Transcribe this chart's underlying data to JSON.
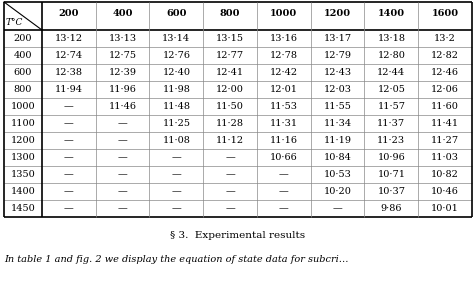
{
  "pressure_header": [
    "200",
    "400",
    "600",
    "800",
    "1000",
    "1200",
    "1400",
    "1600"
  ],
  "temp_col": [
    "200",
    "400",
    "600",
    "800",
    "1000",
    "1100",
    "1200",
    "1300",
    "1350",
    "1400",
    "1450"
  ],
  "table_data": [
    [
      "13·12",
      "13·13",
      "13·14",
      "13·15",
      "13·16",
      "13·17",
      "13·18",
      "13·2"
    ],
    [
      "12·74",
      "12·75",
      "12·76",
      "12·77",
      "12·78",
      "12·79",
      "12·80",
      "12·82"
    ],
    [
      "12·38",
      "12·39",
      "12·40",
      "12·41",
      "12·42",
      "12·43",
      "12·44",
      "12·46"
    ],
    [
      "11·94",
      "11·96",
      "11·98",
      "12·00",
      "12·01",
      "12·03",
      "12·05",
      "12·06"
    ],
    [
      "—",
      "11·46",
      "11·48",
      "11·50",
      "11·53",
      "11·55",
      "11·57",
      "11·60"
    ],
    [
      "—",
      "—",
      "11·25",
      "11·28",
      "11·31",
      "11·34",
      "11·37",
      "11·41"
    ],
    [
      "—",
      "—",
      "11·08",
      "11·12",
      "11·16",
      "11·19",
      "11·23",
      "11·27"
    ],
    [
      "—",
      "—",
      "—",
      "—",
      "10·66",
      "10·84",
      "10·96",
      "11·03"
    ],
    [
      "—",
      "—",
      "—",
      "—",
      "—",
      "10·53",
      "10·71",
      "10·82"
    ],
    [
      "—",
      "—",
      "—",
      "—",
      "—",
      "10·20",
      "10·37",
      "10·46"
    ],
    [
      "—",
      "—",
      "—",
      "—",
      "—",
      "—",
      "9·86",
      "10·01"
    ]
  ],
  "section_title_prefix": "§ 3.  ",
  "section_title_main": "E",
  "section_title_rest": "XPERIMENTAL ",
  "section_title_r2": "R",
  "section_title_rest2": "ESULTS",
  "section_title_full": "§ 3.  Experimental results",
  "bottom_text": "In table 1 and fig. 2 we display the equation of state data for subcri…",
  "col_header_label": "T°C",
  "bg_color": "#ffffff"
}
